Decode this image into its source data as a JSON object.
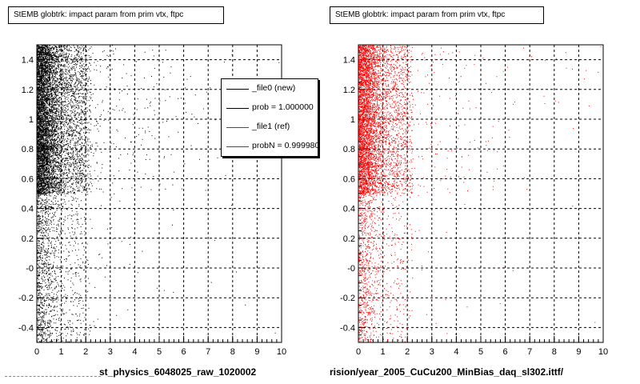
{
  "chart_data": [
    {
      "type": "scatter",
      "title": "StEMB globtrk: impact param from prim vtx, ftpc",
      "xlabel": "st_physics_6048025_raw_1020002",
      "ylabel": "",
      "xlim": [
        0,
        10
      ],
      "ylim": [
        -0.5,
        1.5
      ],
      "x_ticks": [
        "0",
        "1",
        "2",
        "3",
        "4",
        "5",
        "6",
        "7",
        "8",
        "9",
        "10"
      ],
      "y_ticks": [
        "-0.4",
        "-0.2",
        "-0",
        "0.2",
        "0.4",
        "0.6",
        "0.8",
        "1",
        "1.2",
        "1.4"
      ],
      "grid": true,
      "color": "#000000",
      "distribution": {
        "x_concentration": [
          0,
          1
        ],
        "y_concentration": [
          0.5,
          1.5
        ],
        "description_points": 9000
      },
      "legend": {
        "placement": "top-right",
        "entries": [
          {
            "label": "_file0 (new)",
            "color": "#000000"
          },
          {
            "label": "prob = 1.000000",
            "color": "#000000"
          },
          {
            "label": "_file1 (ref)",
            "color": "#ff0000"
          },
          {
            "label": "probN = 0.999980",
            "color": "#ff0000"
          }
        ]
      }
    },
    {
      "type": "scatter",
      "title": "StEMB globtrk: impact param from prim vtx, ftpc",
      "xlabel": "rision/year_2005_CuCu200_MinBias_daq_sl302.ittf/",
      "ylabel": "",
      "xlim": [
        0,
        10
      ],
      "ylim": [
        -0.5,
        1.5
      ],
      "x_ticks": [
        "0",
        "1",
        "2",
        "3",
        "4",
        "5",
        "6",
        "7",
        "8",
        "9",
        "10"
      ],
      "y_ticks": [
        "-0.4",
        "-0.2",
        "-0",
        "0.2",
        "0.4",
        "0.6",
        "0.8",
        "1",
        "1.2",
        "1.4"
      ],
      "grid": true,
      "color": "#ff0000",
      "distribution": {
        "x_concentration": [
          0,
          1
        ],
        "y_concentration": [
          0.5,
          1.5
        ],
        "description_points": 6500
      }
    }
  ]
}
